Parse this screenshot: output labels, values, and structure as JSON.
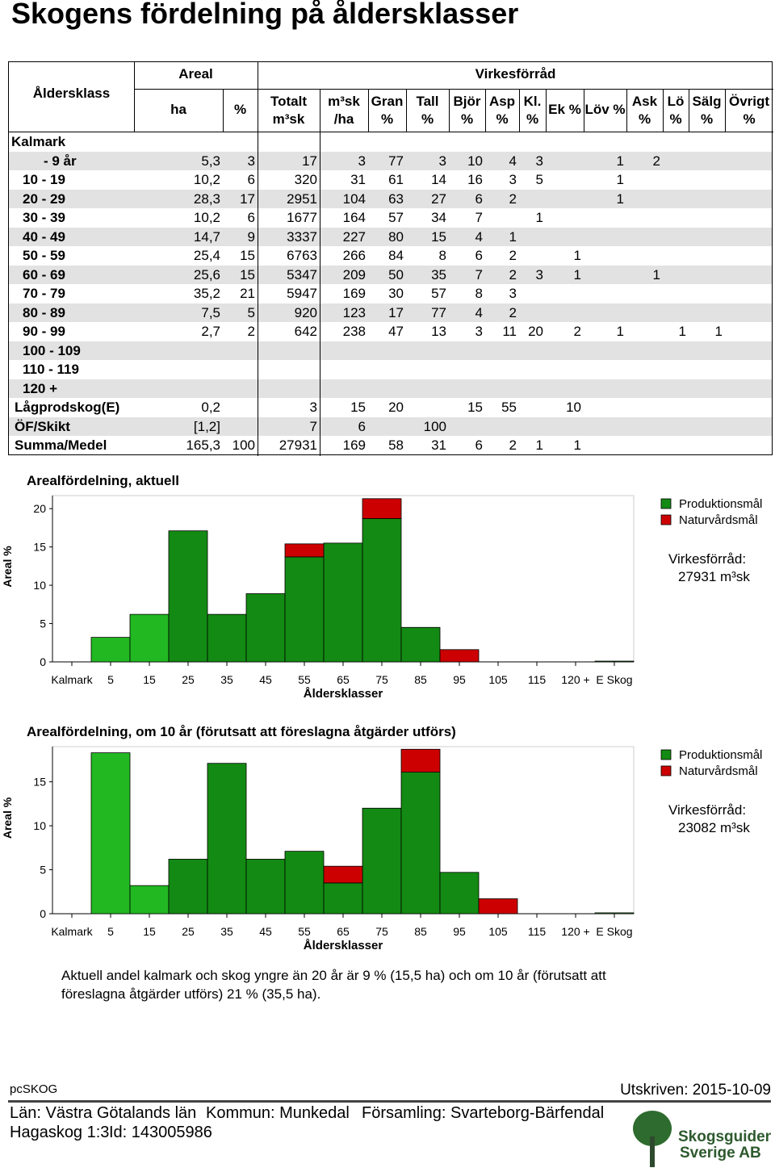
{
  "header": {
    "title": "Skogens fördelning på åldersklasser"
  },
  "table": {
    "group_areal": "Areal",
    "group_virke": "Virkesförråd",
    "columns": [
      "Åldersklass",
      "ha",
      "%",
      "Totalt\nm³sk",
      "m³sk\n/ha",
      "Gran\n%",
      "Tall\n%",
      "Björ\n%",
      "Asp\n%",
      "Kl.\n%",
      "Ek %",
      "Löv %",
      "Ask\n%",
      "Lö\n%",
      "Sälg\n%",
      "Övrigt\n%"
    ],
    "section": "Kalmark",
    "rows": [
      [
        "- 9 år",
        "5,3",
        3,
        17,
        3,
        77,
        3,
        10,
        4,
        3,
        null,
        1,
        2,
        null,
        null,
        null
      ],
      [
        "10 - 19",
        "10,2",
        6,
        320,
        31,
        61,
        14,
        16,
        3,
        5,
        null,
        1,
        null,
        null,
        null,
        null
      ],
      [
        "20 - 29",
        "28,3",
        17,
        2951,
        104,
        63,
        27,
        6,
        2,
        null,
        null,
        1,
        null,
        null,
        null,
        null
      ],
      [
        "30 - 39",
        "10,2",
        6,
        1677,
        164,
        57,
        34,
        7,
        null,
        1,
        null,
        null,
        null,
        null,
        null,
        null
      ],
      [
        "40 - 49",
        "14,7",
        9,
        3337,
        227,
        80,
        15,
        4,
        1,
        null,
        null,
        null,
        null,
        null,
        null,
        null
      ],
      [
        "50 - 59",
        "25,4",
        15,
        6763,
        266,
        84,
        8,
        6,
        2,
        null,
        1,
        null,
        null,
        null,
        null,
        null
      ],
      [
        "60 - 69",
        "25,6",
        15,
        5347,
        209,
        50,
        35,
        7,
        2,
        3,
        1,
        null,
        1,
        null,
        null,
        null
      ],
      [
        "70 - 79",
        "35,2",
        21,
        5947,
        169,
        30,
        57,
        8,
        3,
        null,
        null,
        null,
        null,
        null,
        null,
        null
      ],
      [
        "80 - 89",
        "7,5",
        5,
        920,
        123,
        17,
        77,
        4,
        2,
        null,
        null,
        null,
        null,
        null,
        null,
        null
      ],
      [
        "90 - 99",
        "2,7",
        2,
        642,
        238,
        47,
        13,
        3,
        11,
        20,
        2,
        1,
        null,
        1,
        1,
        null
      ],
      [
        "100 - 109",
        null,
        null,
        null,
        null,
        null,
        null,
        null,
        null,
        null,
        null,
        null,
        null,
        null,
        null,
        null
      ],
      [
        "110 - 119",
        null,
        null,
        null,
        null,
        null,
        null,
        null,
        null,
        null,
        null,
        null,
        null,
        null,
        null,
        null
      ],
      [
        "120 +",
        null,
        null,
        null,
        null,
        null,
        null,
        null,
        null,
        null,
        null,
        null,
        null,
        null,
        null,
        null
      ],
      [
        "Lågprodskog(E)",
        "0,2",
        null,
        3,
        15,
        20,
        null,
        15,
        55,
        null,
        10,
        null,
        null,
        null,
        null,
        null
      ],
      [
        "ÖF/Skikt",
        "[1,2]",
        null,
        7,
        6,
        null,
        100,
        null,
        null,
        null,
        null,
        null,
        null,
        null,
        null,
        null
      ],
      [
        "Summa/Medel",
        "165,3",
        100,
        27931,
        169,
        58,
        31,
        6,
        2,
        1,
        1,
        null,
        null,
        null,
        null,
        null
      ]
    ]
  },
  "chart_data": [
    {
      "type": "bar",
      "stacked": true,
      "title": "Arealfördelning, aktuell",
      "ylabel": "Areal %",
      "xlabel": "Åldersklasser",
      "categories": [
        "Kalmark",
        "5",
        "15",
        "25",
        "35",
        "45",
        "55",
        "65",
        "75",
        "85",
        "95",
        "105",
        "115",
        "120 +",
        "E Skog"
      ],
      "series": [
        {
          "name": "Produktionsmål",
          "color": "#138a13",
          "colors": [
            "#138a13",
            "#22b822",
            "#22b822",
            "#138a13",
            "#138a13",
            "#138a13",
            "#138a13",
            "#138a13",
            "#138a13",
            "#138a13",
            "#138a13",
            "#138a13",
            "#138a13",
            "#138a13",
            "#22b822"
          ],
          "values": [
            0,
            3.2,
            6.2,
            17.1,
            6.2,
            8.9,
            13.7,
            15.5,
            18.7,
            4.5,
            0,
            0,
            0,
            0,
            0.1
          ]
        },
        {
          "name": "Naturvårdsmål",
          "color": "#cc0000",
          "values": [
            0,
            0,
            0,
            0,
            0,
            0,
            1.7,
            0,
            2.6,
            0,
            1.6,
            0,
            0,
            0,
            0
          ]
        }
      ],
      "ylim": [
        0,
        21.7
      ],
      "yticks": [
        0,
        5,
        10,
        15,
        20
      ],
      "note": [
        "Virkesförråd:",
        "27931 m³sk"
      ]
    },
    {
      "type": "bar",
      "stacked": true,
      "title": "Arealfördelning, om 10 år (förutsatt att föreslagna åtgärder utförs)",
      "ylabel": "Areal %",
      "xlabel": "Åldersklasser",
      "categories": [
        "Kalmark",
        "5",
        "15",
        "25",
        "35",
        "45",
        "55",
        "65",
        "75",
        "85",
        "95",
        "105",
        "115",
        "120 +",
        "E Skog"
      ],
      "series": [
        {
          "name": "Produktionsmål",
          "color": "#138a13",
          "colors": [
            "#138a13",
            "#22b822",
            "#22b822",
            "#138a13",
            "#138a13",
            "#138a13",
            "#138a13",
            "#138a13",
            "#138a13",
            "#138a13",
            "#138a13",
            "#138a13",
            "#138a13",
            "#138a13",
            "#22b822"
          ],
          "values": [
            0,
            18.3,
            3.2,
            6.2,
            17.1,
            6.2,
            7.1,
            3.5,
            12.0,
            16.1,
            4.7,
            0,
            0,
            0,
            0.1
          ]
        },
        {
          "name": "Naturvårdsmål",
          "color": "#cc0000",
          "values": [
            0,
            0,
            0,
            0,
            0,
            0,
            0,
            1.9,
            0,
            2.6,
            0,
            1.7,
            0,
            0,
            0
          ]
        }
      ],
      "ylim": [
        0,
        19
      ],
      "yticks": [
        0,
        5,
        10,
        15
      ],
      "note": [
        "Virkesförråd:",
        "23082 m³sk"
      ]
    }
  ],
  "summary": "Aktuell andel kalmark och skog yngre än 20 år är 9 % (15,5 ha) och om 10 år (förutsatt att föreslagna åtgärder utförs) 21 % (35,5 ha).",
  "footer": {
    "program": "pcSKOG",
    "printed": "Utskriven: 2015-10-09",
    "lan": "Län: Västra Götalands län",
    "kommun": "Kommun: Munkedal",
    "forsamling": "Församling: Svarteborg-Bärfendal",
    "fastighet": "Hagaskog 1:3",
    "id": "Id: 143005986",
    "logo": [
      "Skogsguiden",
      "Sverige AB"
    ]
  }
}
